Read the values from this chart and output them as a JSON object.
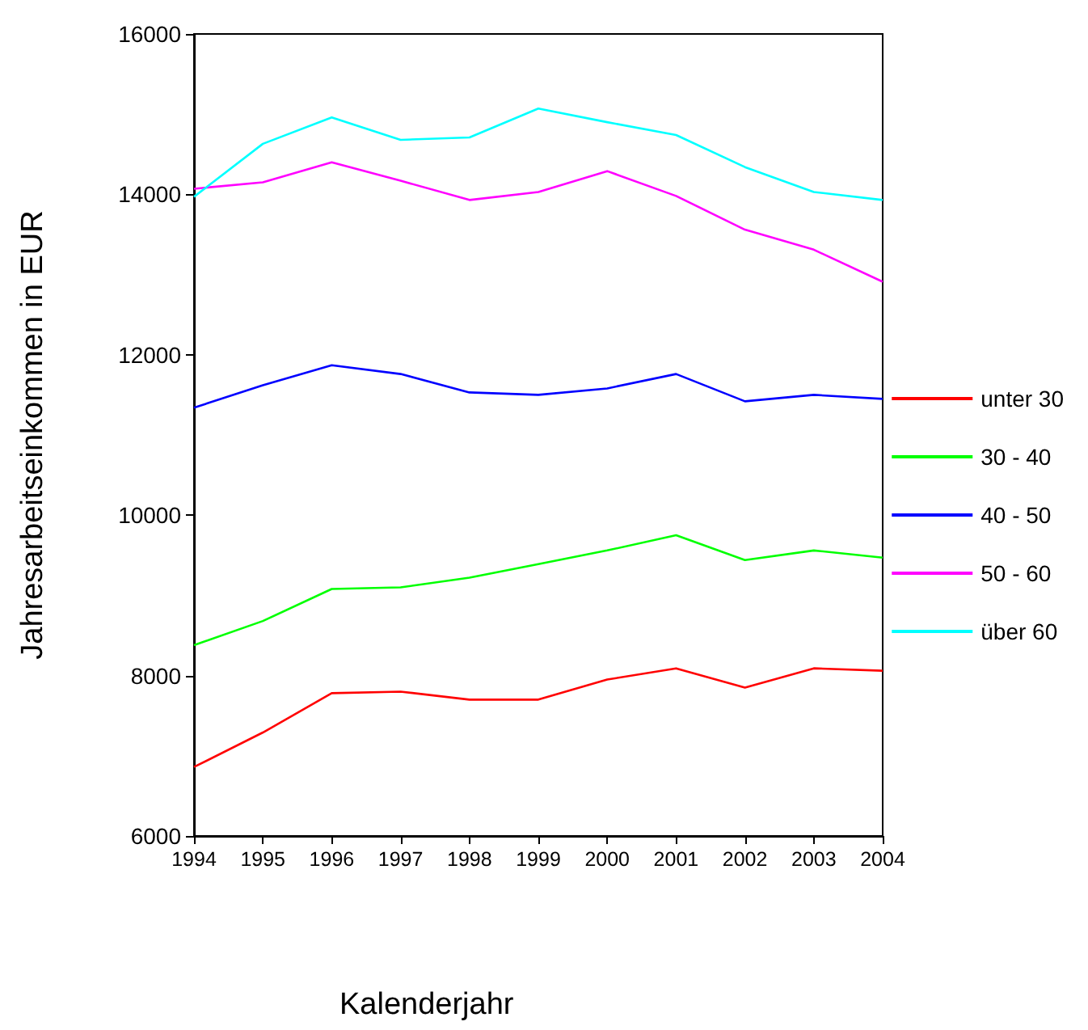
{
  "chart_data": {
    "type": "line",
    "xlabel": "Kalenderjahr",
    "ylabel": "Jahresarbeitseinkommen in EUR",
    "x": [
      1994,
      1995,
      1996,
      1997,
      1998,
      1999,
      2000,
      2001,
      2002,
      2003,
      2004
    ],
    "xlim": [
      1994,
      2004
    ],
    "xticks": [
      1994,
      1995,
      1996,
      1997,
      1998,
      1999,
      2000,
      2001,
      2002,
      2003,
      2004
    ],
    "ylim": [
      6000,
      16000
    ],
    "yticks": [
      6000,
      8000,
      10000,
      12000,
      14000,
      16000
    ],
    "grid": false,
    "legend": "right",
    "marker": "none",
    "line_style": "solid",
    "series": [
      {
        "name": "unter 30",
        "color": "#ff0000",
        "values": [
          6860,
          7290,
          7780,
          7800,
          7700,
          7700,
          7950,
          8090,
          7850,
          8090,
          8060
        ]
      },
      {
        "name": "30 - 40",
        "color": "#00ff00",
        "values": [
          8380,
          8680,
          9080,
          9100,
          9220,
          9390,
          9560,
          9750,
          9440,
          9560,
          9470
        ]
      },
      {
        "name": "40 - 50",
        "color": "#0000ff",
        "values": [
          11340,
          11620,
          11870,
          11760,
          11530,
          11500,
          11580,
          11760,
          11420,
          11500,
          11450
        ]
      },
      {
        "name": "50 - 60",
        "color": "#ff00ff",
        "values": [
          14070,
          14150,
          14400,
          14170,
          13930,
          14030,
          14290,
          13980,
          13560,
          13310,
          12910
        ]
      },
      {
        "name": "über 60",
        "color": "#00ffff",
        "values": [
          13970,
          14630,
          14960,
          14680,
          14710,
          15070,
          14900,
          14740,
          14340,
          14030,
          13930
        ]
      }
    ]
  }
}
